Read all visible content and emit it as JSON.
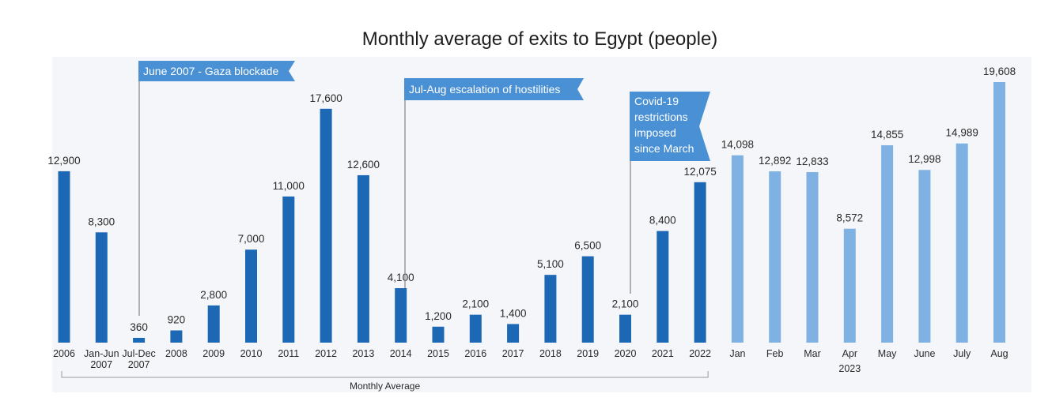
{
  "chart_data": {
    "type": "bar",
    "title": "Monthly average of exits to Egypt (people)",
    "xlabel": "",
    "ylabel": "",
    "ylim": [
      0,
      20000
    ],
    "grid": false,
    "categories": [
      "2006",
      "Jan-Jun 2007",
      "Jul-Dec 2007",
      "2008",
      "2009",
      "2010",
      "2011",
      "2012",
      "2013",
      "2014",
      "2015",
      "2016",
      "2017",
      "2018",
      "2019",
      "2020",
      "2021",
      "2022",
      "Jan",
      "Feb",
      "Mar",
      "Apr",
      "May",
      "June",
      "July",
      "Aug"
    ],
    "category_lines": [
      [
        "2006"
      ],
      [
        "Jan-Jun",
        "2007"
      ],
      [
        "Jul-Dec",
        "2007"
      ],
      [
        "2008"
      ],
      [
        "2009"
      ],
      [
        "2010"
      ],
      [
        "2011"
      ],
      [
        "2012"
      ],
      [
        "2013"
      ],
      [
        "2014"
      ],
      [
        "2015"
      ],
      [
        "2016"
      ],
      [
        "2017"
      ],
      [
        "2018"
      ],
      [
        "2019"
      ],
      [
        "2020"
      ],
      [
        "2021"
      ],
      [
        "2022"
      ],
      [
        "Jan"
      ],
      [
        "Feb"
      ],
      [
        "Mar"
      ],
      [
        "Apr"
      ],
      [
        "May"
      ],
      [
        "June"
      ],
      [
        "July"
      ],
      [
        "Aug"
      ]
    ],
    "values": [
      12900,
      8300,
      360,
      920,
      2800,
      7000,
      11000,
      17600,
      12600,
      4100,
      1200,
      2100,
      1400,
      5100,
      6500,
      2100,
      8400,
      12075,
      14098,
      12892,
      12833,
      8572,
      14855,
      12998,
      14989,
      19608
    ],
    "value_labels": [
      "12,900",
      "8,300",
      "360",
      "920",
      "2,800",
      "7,000",
      "11,000",
      "17,600",
      "12,600",
      "4,100",
      "1,200",
      "2,100",
      "1,400",
      "5,100",
      "6,500",
      "2,100",
      "8,400",
      "12,075",
      "14,098",
      "12,892",
      "12,833",
      "8,572",
      "14,855",
      "12,998",
      "14,989",
      "19,608"
    ],
    "groups": [
      {
        "label": "Monthly Average",
        "from": 0,
        "to": 17
      },
      {
        "label": "2023",
        "from": 18,
        "to": 25
      }
    ],
    "annotations": [
      {
        "lines": [
          "June 2007 - Gaza blockade"
        ],
        "index": 2
      },
      {
        "lines": [
          "Jul-Aug escalation of hostilities"
        ],
        "index": 9
      },
      {
        "lines": [
          "Covid-19",
          "restrictions",
          "imposed",
          "since March"
        ],
        "index": 15
      }
    ],
    "colors": {
      "annual": "#1c68b4",
      "monthly_2023": "#7fb2e3",
      "annotation": "#4a90d4",
      "connector": "#8a8a8a",
      "panel": "#f4f6f9"
    }
  }
}
